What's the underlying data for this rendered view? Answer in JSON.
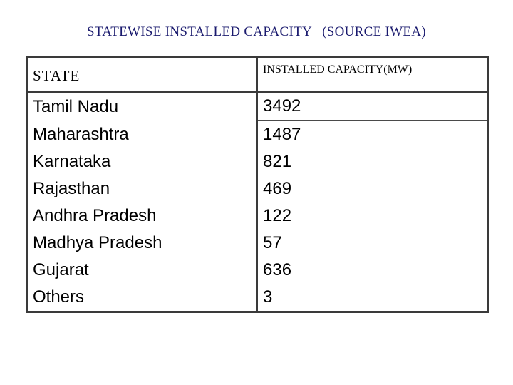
{
  "title": {
    "main": "STATEWISE INSTALLED CAPACITY",
    "source": "(SOURCE IWEA)"
  },
  "table": {
    "headers": {
      "state": "STATE",
      "capacity": "INSTALLED CAPACITY(MW)"
    },
    "rows": [
      {
        "state": "Tamil Nadu",
        "capacity": "3492"
      },
      {
        "state": "Maharashtra",
        "capacity": "1487"
      },
      {
        "state": "Karnataka",
        "capacity": "821"
      },
      {
        "state": "Rajasthan",
        "capacity": "469"
      },
      {
        "state": "Andhra Pradesh",
        "capacity": "122"
      },
      {
        "state": "Madhya Pradesh",
        "capacity": "57"
      },
      {
        "state": "Gujarat",
        "capacity": "636"
      },
      {
        "state": "Others",
        "capacity": "3"
      }
    ]
  },
  "colors": {
    "title": "#1a1a6e",
    "border": "#3a3a3a",
    "text": "#000000"
  }
}
